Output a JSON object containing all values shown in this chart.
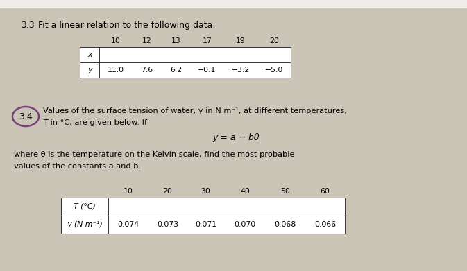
{
  "bg_color": "#cbc5b8",
  "top_strip_color": "#e8e4de",
  "section_33": {
    "title_num": "3.3",
    "title_text": "Fit a linear relation to the following data:",
    "table": {
      "row1_label": "x",
      "row2_label": "y",
      "x_values": [
        "10",
        "12",
        "13",
        "17",
        "19",
        "20"
      ],
      "y_values": [
        "11.0",
        "7.6",
        "6.2",
        "−0.1",
        "−3.2",
        "−5.0"
      ]
    }
  },
  "section_34": {
    "number": "3.4",
    "circle_color": "#7b3f7b",
    "text_line1": "Values of the surface tension of water, γ in N m⁻¹, at different temperatures,",
    "text_line2": "T in °C, are given below. If",
    "formula": "y = a − bθ",
    "text_line3": "where θ is the temperature on the Kelvin scale, find the most probable",
    "text_line4": "values of the constants a and b.",
    "table": {
      "row1_label": "T (°C)",
      "row2_label": "γ (N m⁻¹)",
      "t_values": [
        "10",
        "20",
        "30",
        "40",
        "50",
        "60"
      ],
      "y_values": [
        "0.074",
        "0.073",
        "0.071",
        "0.070",
        "0.068",
        "0.066"
      ]
    }
  },
  "fontsize_title": 9.0,
  "fontsize_body": 8.2,
  "fontsize_table": 7.8,
  "fontsize_formula": 9.0
}
